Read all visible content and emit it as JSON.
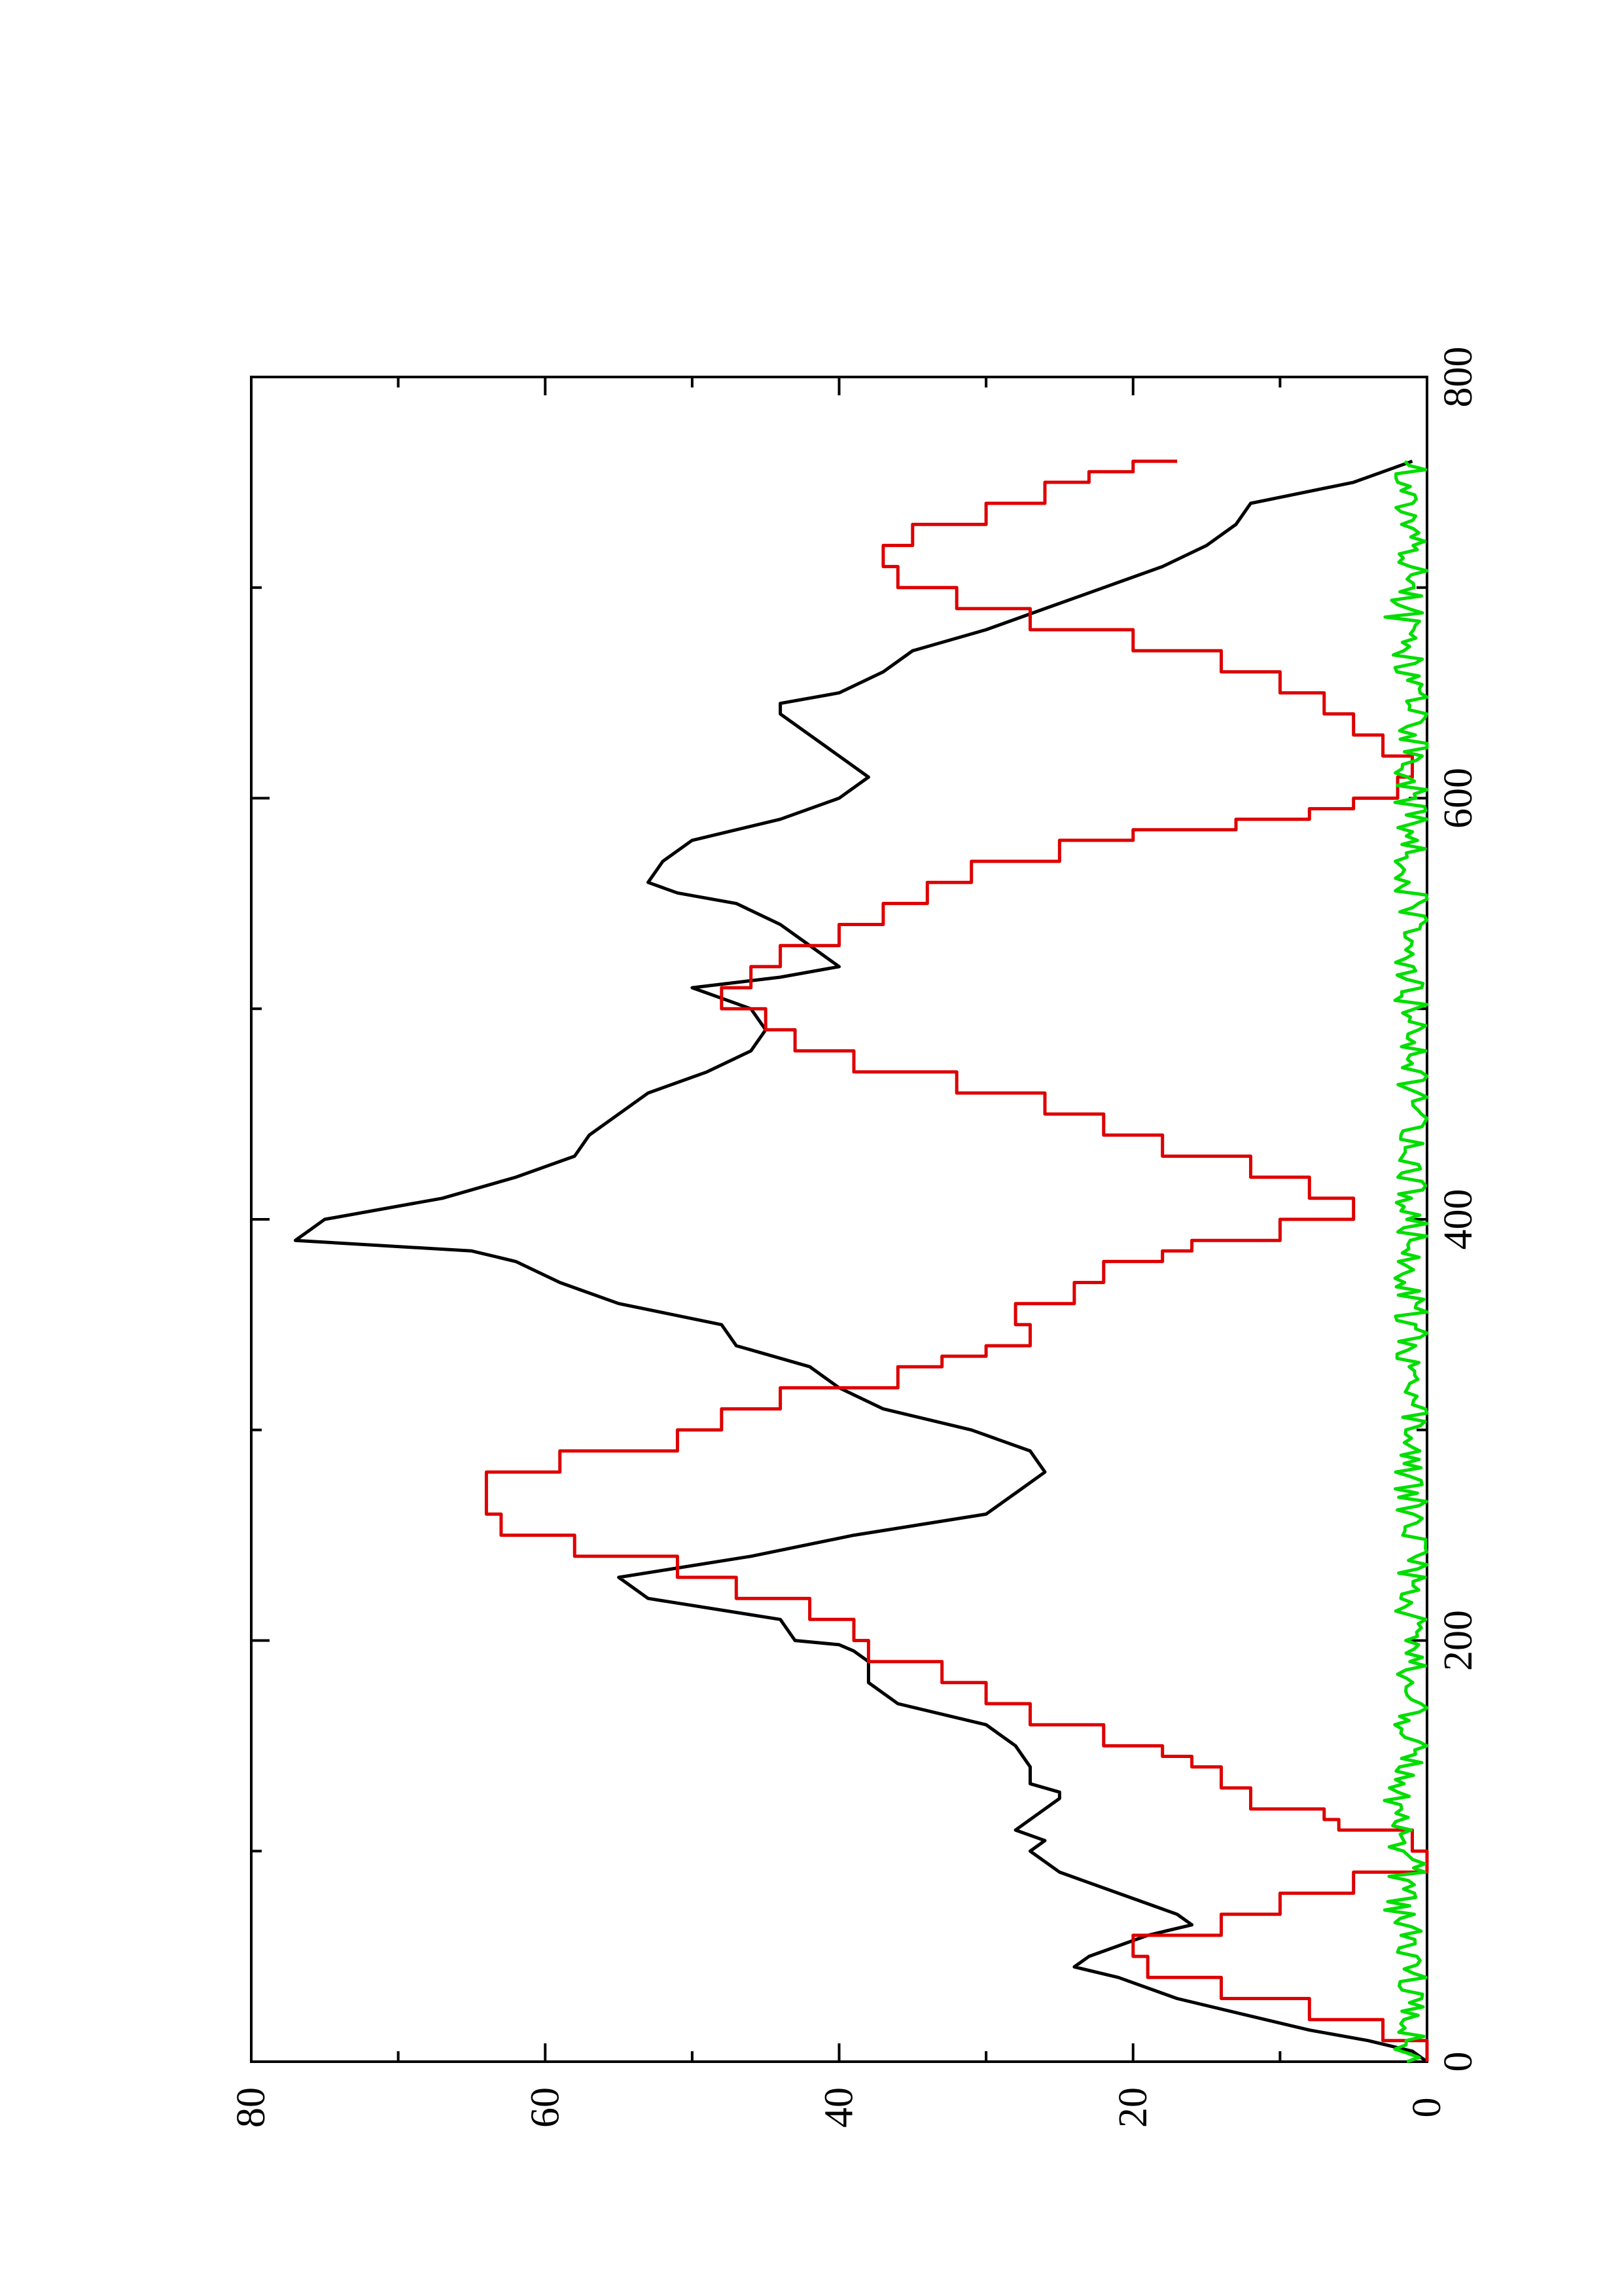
{
  "chart_data": {
    "type": "line",
    "orientation": "rotated-90-ccw",
    "title": "",
    "xlabel": "",
    "ylabel": "",
    "xlim": [
      0,
      800
    ],
    "ylim": [
      0,
      80
    ],
    "x_ticks": [
      0,
      200,
      400,
      600,
      800
    ],
    "x_minor_ticks": [
      100,
      300,
      500,
      700
    ],
    "y_ticks": [
      0,
      20,
      40,
      60,
      80
    ],
    "y_minor_ticks": [
      10,
      30,
      50,
      70
    ],
    "grid": false,
    "legend": "none",
    "series": [
      {
        "color": "#000000",
        "style": "smooth",
        "points": [
          [
            0,
            0
          ],
          [
            5,
            1
          ],
          [
            10,
            4
          ],
          [
            15,
            8
          ],
          [
            20,
            11
          ],
          [
            30,
            17
          ],
          [
            40,
            21
          ],
          [
            45,
            24
          ],
          [
            50,
            23
          ],
          [
            60,
            19
          ],
          [
            65,
            16
          ],
          [
            70,
            17
          ],
          [
            80,
            21
          ],
          [
            90,
            25
          ],
          [
            100,
            27
          ],
          [
            105,
            26
          ],
          [
            110,
            28
          ],
          [
            115,
            27
          ],
          [
            120,
            26
          ],
          [
            125,
            25
          ],
          [
            128,
            25
          ],
          [
            132,
            27
          ],
          [
            140,
            27
          ],
          [
            150,
            28
          ],
          [
            160,
            30
          ],
          [
            170,
            36
          ],
          [
            180,
            38
          ],
          [
            190,
            38
          ],
          [
            195,
            39
          ],
          [
            198,
            40
          ],
          [
            200,
            43
          ],
          [
            210,
            44
          ],
          [
            220,
            53
          ],
          [
            230,
            55
          ],
          [
            240,
            46
          ],
          [
            250,
            39
          ],
          [
            260,
            30
          ],
          [
            270,
            28
          ],
          [
            280,
            26
          ],
          [
            290,
            27
          ],
          [
            300,
            31
          ],
          [
            310,
            37
          ],
          [
            320,
            40
          ],
          [
            330,
            42
          ],
          [
            340,
            47
          ],
          [
            350,
            48
          ],
          [
            360,
            55
          ],
          [
            370,
            59
          ],
          [
            380,
            62
          ],
          [
            385,
            65
          ],
          [
            390,
            77
          ],
          [
            395,
            76
          ],
          [
            400,
            75
          ],
          [
            410,
            67
          ],
          [
            420,
            62
          ],
          [
            430,
            58
          ],
          [
            440,
            57
          ],
          [
            450,
            55
          ],
          [
            460,
            53
          ],
          [
            470,
            49
          ],
          [
            480,
            46
          ],
          [
            490,
            45
          ],
          [
            500,
            46
          ],
          [
            510,
            50
          ],
          [
            515,
            44
          ],
          [
            520,
            40
          ],
          [
            530,
            42
          ],
          [
            540,
            44
          ],
          [
            550,
            47
          ],
          [
            555,
            51
          ],
          [
            560,
            53
          ],
          [
            570,
            52
          ],
          [
            580,
            50
          ],
          [
            590,
            44
          ],
          [
            600,
            40
          ],
          [
            610,
            38
          ],
          [
            620,
            40
          ],
          [
            630,
            42
          ],
          [
            640,
            44
          ],
          [
            645,
            44
          ],
          [
            650,
            40
          ],
          [
            660,
            37
          ],
          [
            670,
            35
          ],
          [
            680,
            30
          ],
          [
            690,
            26
          ],
          [
            700,
            22
          ],
          [
            710,
            18
          ],
          [
            720,
            15
          ],
          [
            730,
            13
          ],
          [
            740,
            12
          ],
          [
            750,
            5
          ],
          [
            755,
            3
          ],
          [
            760,
            1
          ]
        ]
      },
      {
        "color": "#dd0000",
        "style": "step",
        "points": [
          [
            0,
            0
          ],
          [
            10,
            3
          ],
          [
            20,
            8
          ],
          [
            30,
            14
          ],
          [
            40,
            19
          ],
          [
            50,
            20
          ],
          [
            60,
            14
          ],
          [
            70,
            10
          ],
          [
            80,
            5
          ],
          [
            90,
            0
          ],
          [
            100,
            1
          ],
          [
            110,
            6
          ],
          [
            115,
            7
          ],
          [
            120,
            12
          ],
          [
            130,
            14
          ],
          [
            140,
            16
          ],
          [
            145,
            18
          ],
          [
            150,
            22
          ],
          [
            160,
            27
          ],
          [
            170,
            30
          ],
          [
            180,
            33
          ],
          [
            190,
            38
          ],
          [
            200,
            39
          ],
          [
            210,
            42
          ],
          [
            220,
            47
          ],
          [
            230,
            51
          ],
          [
            240,
            58
          ],
          [
            250,
            63
          ],
          [
            260,
            64
          ],
          [
            270,
            64
          ],
          [
            280,
            59
          ],
          [
            290,
            51
          ],
          [
            300,
            48
          ],
          [
            310,
            44
          ],
          [
            320,
            36
          ],
          [
            330,
            33
          ],
          [
            335,
            30
          ],
          [
            340,
            27
          ],
          [
            350,
            28
          ],
          [
            360,
            24
          ],
          [
            370,
            22
          ],
          [
            380,
            18
          ],
          [
            385,
            16
          ],
          [
            390,
            10
          ],
          [
            395,
            10
          ],
          [
            400,
            5
          ],
          [
            410,
            8
          ],
          [
            420,
            12
          ],
          [
            430,
            18
          ],
          [
            440,
            22
          ],
          [
            450,
            26
          ],
          [
            460,
            32
          ],
          [
            470,
            39
          ],
          [
            480,
            43
          ],
          [
            490,
            45
          ],
          [
            500,
            48
          ],
          [
            510,
            46
          ],
          [
            520,
            44
          ],
          [
            530,
            40
          ],
          [
            540,
            37
          ],
          [
            550,
            34
          ],
          [
            560,
            31
          ],
          [
            570,
            25
          ],
          [
            580,
            20
          ],
          [
            585,
            13
          ],
          [
            590,
            8
          ],
          [
            595,
            5
          ],
          [
            600,
            2
          ],
          [
            610,
            1
          ],
          [
            620,
            3
          ],
          [
            630,
            5
          ],
          [
            640,
            7
          ],
          [
            650,
            10
          ],
          [
            660,
            14
          ],
          [
            670,
            20
          ],
          [
            680,
            27
          ],
          [
            690,
            32
          ],
          [
            700,
            36
          ],
          [
            710,
            37
          ],
          [
            715,
            37
          ],
          [
            720,
            35
          ],
          [
            730,
            30
          ],
          [
            740,
            26
          ],
          [
            750,
            23
          ],
          [
            755,
            20
          ],
          [
            760,
            17
          ]
        ]
      },
      {
        "color": "#00dd00",
        "style": "noisy",
        "mean": 1.0,
        "amplitude": 1.2,
        "points_range": [
          0,
          760
        ]
      }
    ]
  }
}
